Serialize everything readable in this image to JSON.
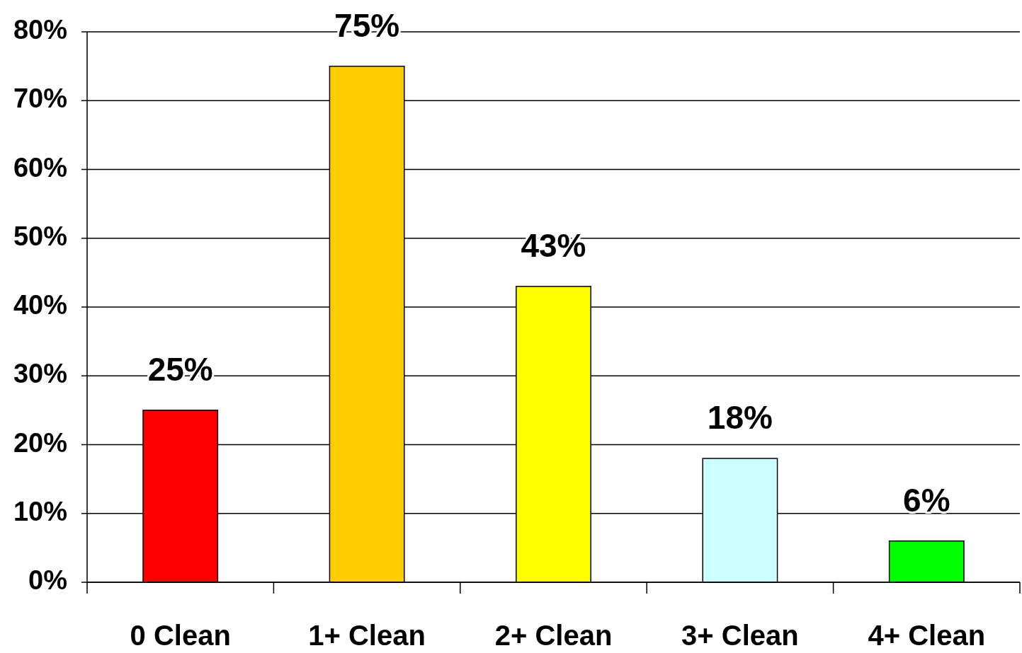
{
  "chart_data": {
    "type": "bar",
    "categories": [
      "0 Clean",
      "1+ Clean",
      "2+ Clean",
      "3+ Clean",
      "4+ Clean"
    ],
    "values": [
      25,
      75,
      43,
      18,
      6
    ],
    "colors": [
      "#ff0000",
      "#ffcc00",
      "#ffff00",
      "#ccffff",
      "#00ff00"
    ],
    "value_labels": [
      "25%",
      "75%",
      "43%",
      "18%",
      "6%"
    ],
    "ylim": [
      0,
      80
    ],
    "yticks": [
      {
        "value": 0,
        "label": "0%"
      },
      {
        "value": 10,
        "label": "10%"
      },
      {
        "value": 20,
        "label": "20%"
      },
      {
        "value": 30,
        "label": "30%"
      },
      {
        "value": 40,
        "label": "40%"
      },
      {
        "value": 50,
        "label": "50%"
      },
      {
        "value": 60,
        "label": "60%"
      },
      {
        "value": 70,
        "label": "70%"
      },
      {
        "value": 80,
        "label": "80%"
      }
    ],
    "grid": "y"
  }
}
